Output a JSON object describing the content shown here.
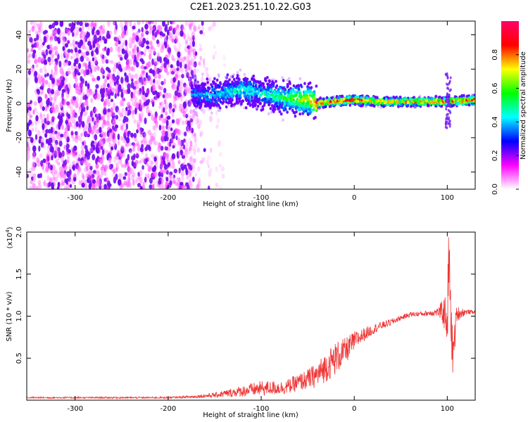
{
  "title": "C2E1.2023.251.10.22.G03",
  "chart_data": [
    {
      "type": "heatmap",
      "xlabel": "Height of straight line (km)",
      "ylabel": "Frequency (Hz)",
      "xlim": [
        -352,
        130
      ],
      "ylim": [
        -50,
        48
      ],
      "xticks": [
        -300,
        -200,
        -100,
        0,
        100
      ],
      "yticks": [
        -40,
        -20,
        0,
        20,
        40
      ],
      "colorbar": {
        "label": "Normalized spectral amplitude",
        "range": [
          0.0,
          1.0
        ],
        "ticks": [
          "0.0",
          "0.2",
          "0.4",
          "0.6",
          "0.8"
        ],
        "colors": [
          "#ffffff",
          "#ff00ff",
          "#0000ff",
          "#00ffff",
          "#00ff00",
          "#ffff00",
          "#ff0000",
          "#ff0066"
        ]
      },
      "ridge": {
        "x": [
          -175,
          -150,
          -125,
          -100,
          -75,
          -50,
          -40,
          -25,
          0,
          25,
          50,
          75,
          100,
          130
        ],
        "freq": [
          5,
          5,
          8,
          6,
          3,
          2,
          0,
          1,
          2,
          1,
          1,
          1,
          1,
          2
        ],
        "amplitude": [
          0.35,
          0.4,
          0.45,
          0.45,
          0.55,
          0.7,
          0.85,
          0.85,
          0.9,
          0.8,
          0.75,
          0.8,
          0.85,
          0.85
        ]
      },
      "noise_region": {
        "x_from": -352,
        "x_to": -170,
        "amplitude": 0.05
      }
    },
    {
      "type": "line",
      "xlabel": "Height of straight line (km)",
      "ylabel": "SNR (10 * v/v)",
      "yscale_label": "(x10",
      "yscale_exp": "4",
      "yscale_close": ")",
      "xlim": [
        -352,
        130
      ],
      "ylim": [
        0,
        2.0
      ],
      "xticks": [
        -300,
        -200,
        -100,
        0,
        100
      ],
      "yticks": [
        "0.5",
        "1.0",
        "1.5",
        "2.0"
      ],
      "line_color": "#ee3333",
      "series": [
        {
          "x": [
            -352,
            -300,
            -250,
            -200,
            -175,
            -150,
            -125,
            -100,
            -75,
            -50,
            -40,
            -30,
            -20,
            -10,
            0,
            10,
            25,
            40,
            50,
            60,
            75,
            90,
            95,
            100,
            103,
            106,
            110,
            120,
            130
          ],
          "y": [
            0.03,
            0.03,
            0.03,
            0.03,
            0.04,
            0.06,
            0.1,
            0.14,
            0.15,
            0.25,
            0.3,
            0.4,
            0.5,
            0.58,
            0.7,
            0.78,
            0.87,
            0.93,
            0.98,
            1.02,
            1.03,
            1.05,
            1.05,
            1.0,
            1.25,
            0.5,
            1.03,
            1.05,
            1.05
          ],
          "noise": [
            0.01,
            0.01,
            0.01,
            0.01,
            0.015,
            0.03,
            0.06,
            0.09,
            0.08,
            0.12,
            0.15,
            0.18,
            0.2,
            0.16,
            0.12,
            0.08,
            0.05,
            0.04,
            0.03,
            0.03,
            0.03,
            0.05,
            0.15,
            0.3,
            0.35,
            0.3,
            0.1,
            0.03,
            0.02
          ]
        }
      ]
    }
  ]
}
